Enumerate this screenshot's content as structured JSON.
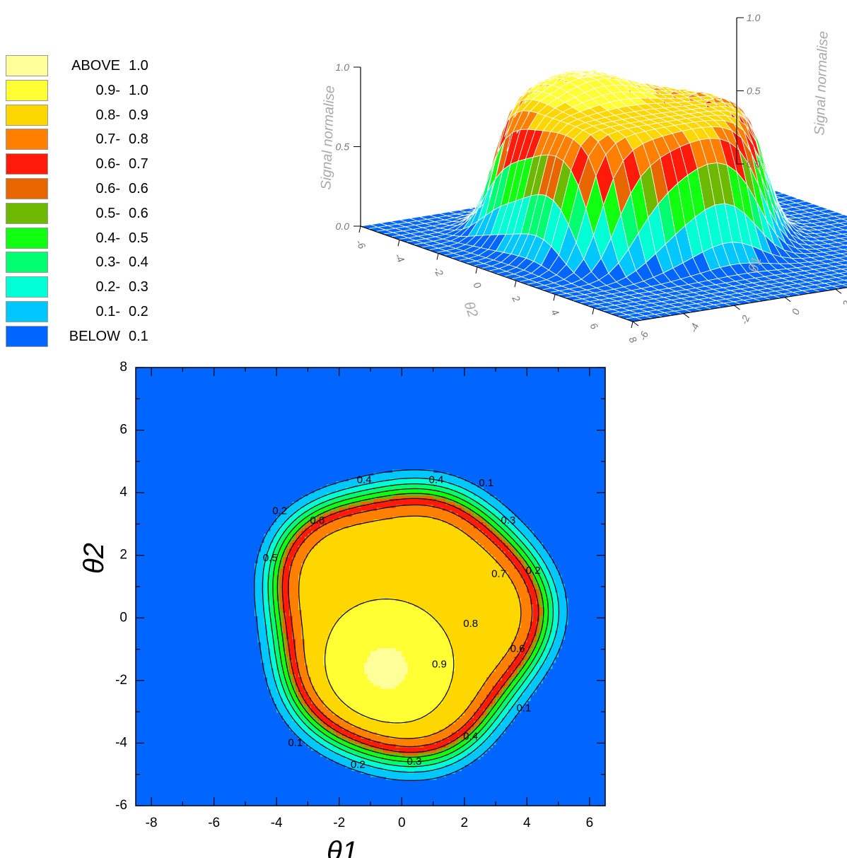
{
  "legend": {
    "entries": [
      {
        "lo": "ABOVE",
        "hi": "1.0",
        "color": "#ffff99"
      },
      {
        "lo": "0.9-",
        "hi": "1.0",
        "color": "#ffff33"
      },
      {
        "lo": "0.8-",
        "hi": "0.9",
        "color": "#ffd700"
      },
      {
        "lo": "0.7-",
        "hi": "0.8",
        "color": "#ff7f00"
      },
      {
        "lo": "0.6-",
        "hi": "0.7",
        "color": "#ff1a0a"
      },
      {
        "lo": "0.6-",
        "hi": "0.6",
        "color": "#e86600"
      },
      {
        "lo": "0.5-",
        "hi": "0.6",
        "color": "#6db800"
      },
      {
        "lo": "0.4-",
        "hi": "0.5",
        "color": "#10ff10"
      },
      {
        "lo": "0.3-",
        "hi": "0.4",
        "color": "#00ff70"
      },
      {
        "lo": "0.2-",
        "hi": "0.3",
        "color": "#00ffd5"
      },
      {
        "lo": "0.1-",
        "hi": "0.2",
        "color": "#00c8ff"
      },
      {
        "lo": "BELOW",
        "hi": "0.1",
        "color": "#0066ff"
      }
    ]
  },
  "chart_data": [
    {
      "type": "surface",
      "zlabel": "Signal normalise",
      "xlabel": "θ1",
      "ylabel": "θ2",
      "xlim": [
        -6,
        8
      ],
      "ylim": [
        -6,
        8
      ],
      "zlim": [
        0,
        1
      ],
      "x_ticks": [
        "-6",
        "-4",
        "-2",
        "0",
        "2",
        "4",
        "6",
        "8"
      ],
      "y_ticks": [
        "-6",
        "-4",
        "-2",
        "0",
        "2",
        "4",
        "6",
        "8"
      ],
      "z_ticks_left": [
        "0.0",
        "0.5",
        "1.0"
      ],
      "z_ticks_right": [
        "0.0",
        "0.5",
        "1.0"
      ],
      "peak": {
        "x": -0.5,
        "y": -1.5,
        "value": 1.0
      }
    },
    {
      "type": "contour",
      "xlabel": "θ1",
      "ylabel": "θ2",
      "xlim": [
        -8.5,
        6.5
      ],
      "ylim": [
        -6,
        8
      ],
      "x_ticks": [
        -8,
        -6,
        -4,
        -2,
        0,
        2,
        4,
        6
      ],
      "y_ticks": [
        -6,
        -4,
        -2,
        0,
        2,
        4,
        6,
        8
      ],
      "levels": [
        0.1,
        0.2,
        0.3,
        0.4,
        0.5,
        0.6,
        0.7,
        0.8,
        0.9
      ],
      "contour_labels": [
        {
          "text": "0.1",
          "x": 2.7,
          "y": 4.3
        },
        {
          "text": "0.4",
          "x": 1.1,
          "y": 4.4
        },
        {
          "text": "0.4",
          "x": -1.2,
          "y": 4.4
        },
        {
          "text": "0.2",
          "x": -3.9,
          "y": 3.4
        },
        {
          "text": "0.6",
          "x": -2.7,
          "y": 3.1
        },
        {
          "text": "0.3",
          "x": 3.4,
          "y": 3.1
        },
        {
          "text": "0.5",
          "x": -4.2,
          "y": 1.9
        },
        {
          "text": "0.7",
          "x": 3.1,
          "y": 1.4
        },
        {
          "text": "0.2",
          "x": 4.2,
          "y": 1.5
        },
        {
          "text": "0.8",
          "x": 2.2,
          "y": -0.2
        },
        {
          "text": "0.6",
          "x": 3.7,
          "y": -1.0
        },
        {
          "text": "0.9",
          "x": 1.2,
          "y": -1.5
        },
        {
          "text": "0.1",
          "x": 3.9,
          "y": -2.9
        },
        {
          "text": "0.4",
          "x": 2.2,
          "y": -3.8
        },
        {
          "text": "0.1",
          "x": -3.4,
          "y": -4.0
        },
        {
          "text": "0.3",
          "x": 0.4,
          "y": -4.6
        },
        {
          "text": "0.2",
          "x": -1.4,
          "y": -4.7
        }
      ]
    }
  ]
}
